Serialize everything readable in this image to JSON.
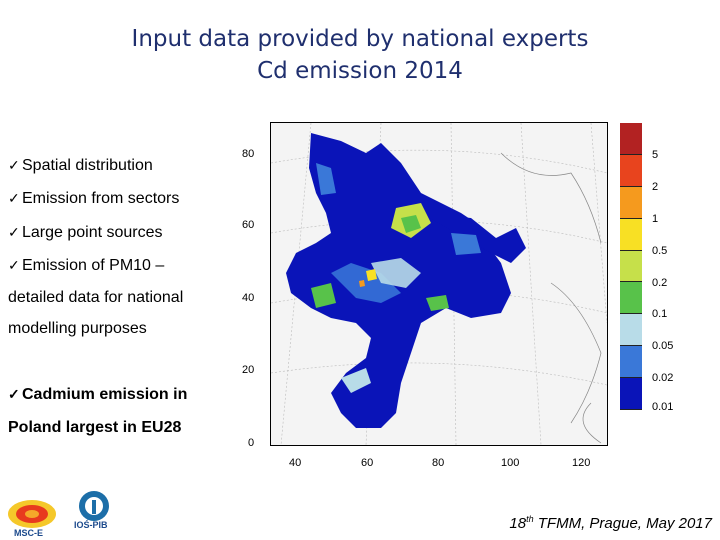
{
  "title": {
    "line1": "Input data provided by national experts",
    "line2": "Cd emission 2014"
  },
  "bullets": [
    "Spatial distribution",
    "Emission from sectors",
    "Large point sources",
    "Emission of PM10 –"
  ],
  "bullet_continuation": [
    "detailed data for national",
    "modelling purposes"
  ],
  "bold_bullet": "Cadmium emission in",
  "bold_continuation": "Poland  largest in EU28",
  "map": {
    "y_ticks": [
      "80",
      "60",
      "40",
      "20",
      "0"
    ],
    "x_ticks": [
      "40",
      "60",
      "80",
      "100",
      "120"
    ]
  },
  "legend": {
    "labels": [
      "5",
      "2",
      "1",
      "0.5",
      "0.2",
      "0.1",
      "0.05",
      "0.02",
      "0.01"
    ],
    "colors": [
      "#b22222",
      "#e8441e",
      "#f59a1e",
      "#f8e024",
      "#c6e04a",
      "#58c24a",
      "#b8dce8",
      "#3a78d8",
      "#0a14b8"
    ]
  },
  "logos": {
    "left_caption": "MSC-E",
    "right_caption": "IOŚ-PIB"
  },
  "footer": {
    "ordinal": "18",
    "suffix": "th",
    "text": " TFMM, Prague, May 2017"
  }
}
